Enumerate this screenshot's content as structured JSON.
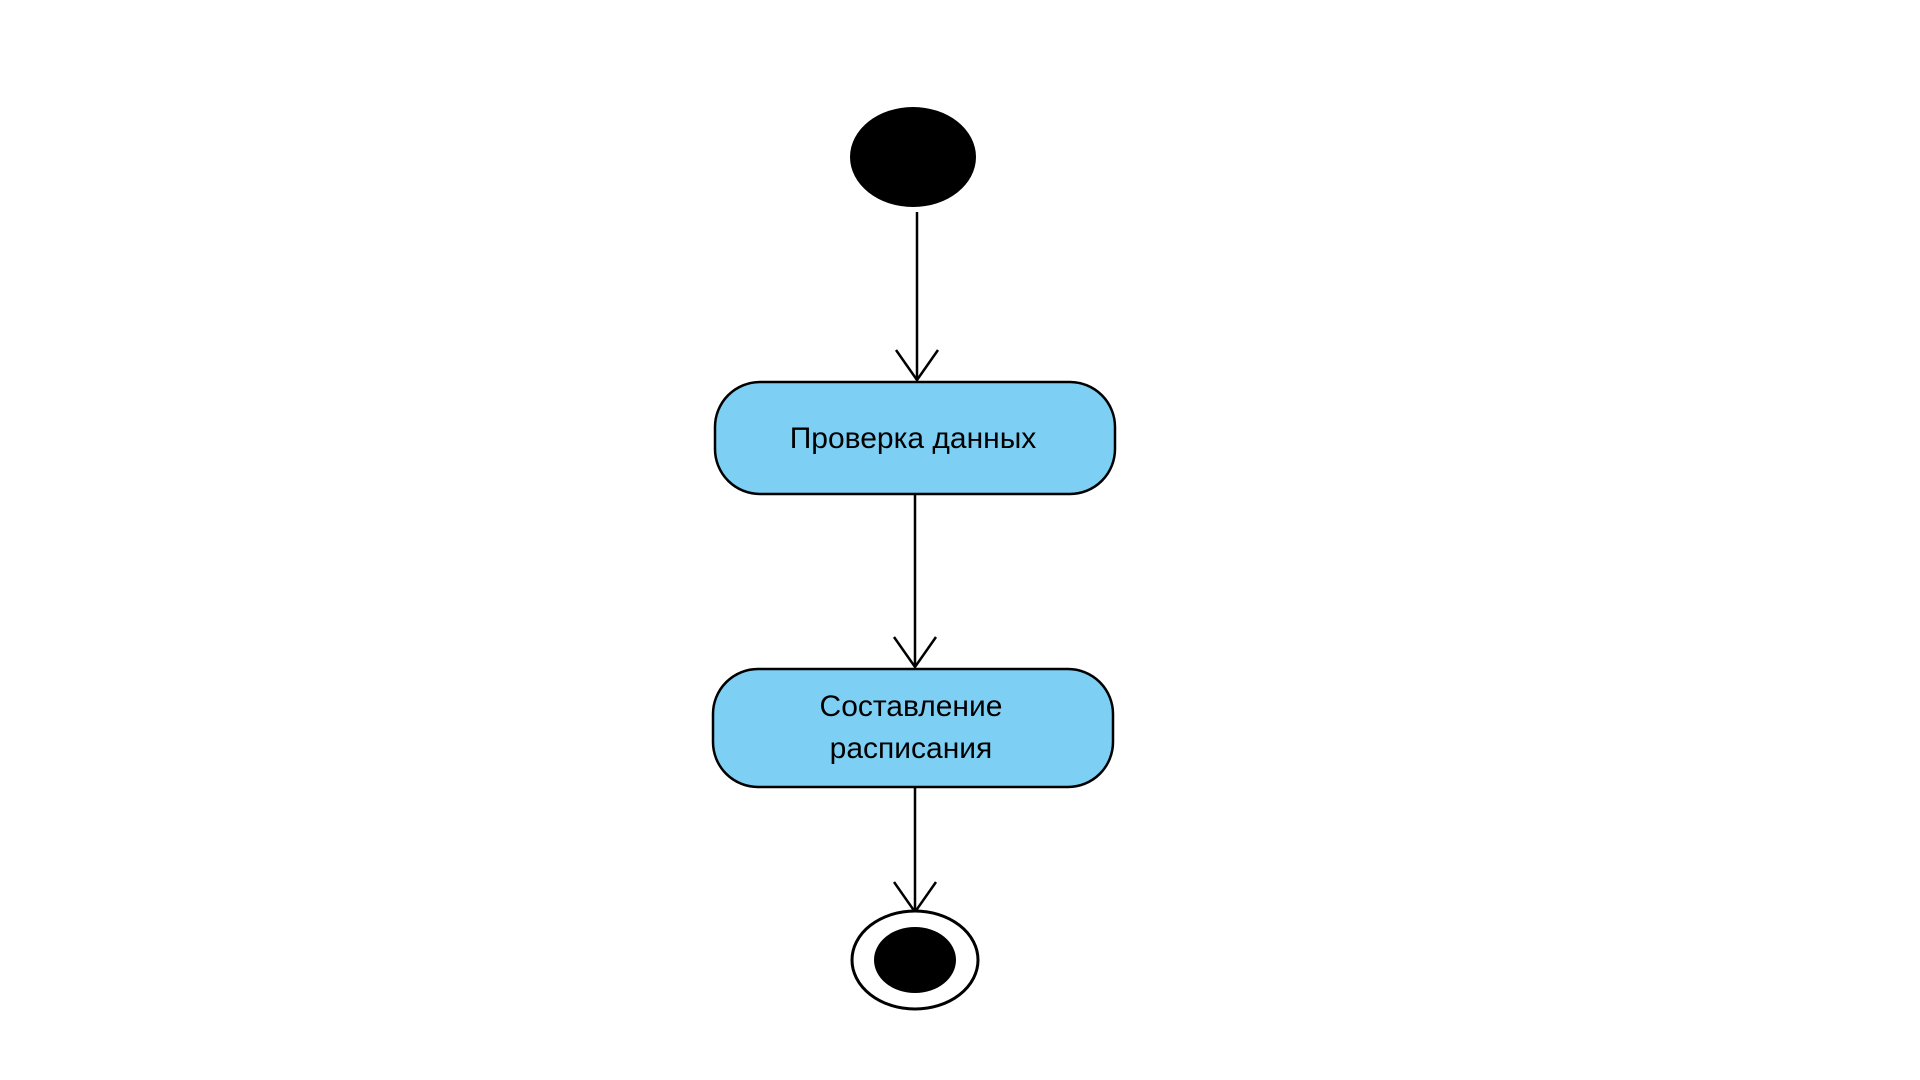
{
  "diagram": {
    "kind": "uml-activity",
    "colors": {
      "background": "#ffffff",
      "action_fill": "#7dcff3",
      "stroke": "#000000",
      "node_fill": "#000000"
    },
    "nodes": [
      {
        "id": "start",
        "kind": "initial-node"
      },
      {
        "id": "check",
        "kind": "action",
        "lines": [
          "Проверка данных"
        ]
      },
      {
        "id": "schedule",
        "kind": "action",
        "lines": [
          "Составление",
          "расписания"
        ]
      },
      {
        "id": "end",
        "kind": "final-node"
      }
    ],
    "edges": [
      {
        "from": "start",
        "to": "check"
      },
      {
        "from": "check",
        "to": "schedule"
      },
      {
        "from": "schedule",
        "to": "end"
      }
    ]
  }
}
